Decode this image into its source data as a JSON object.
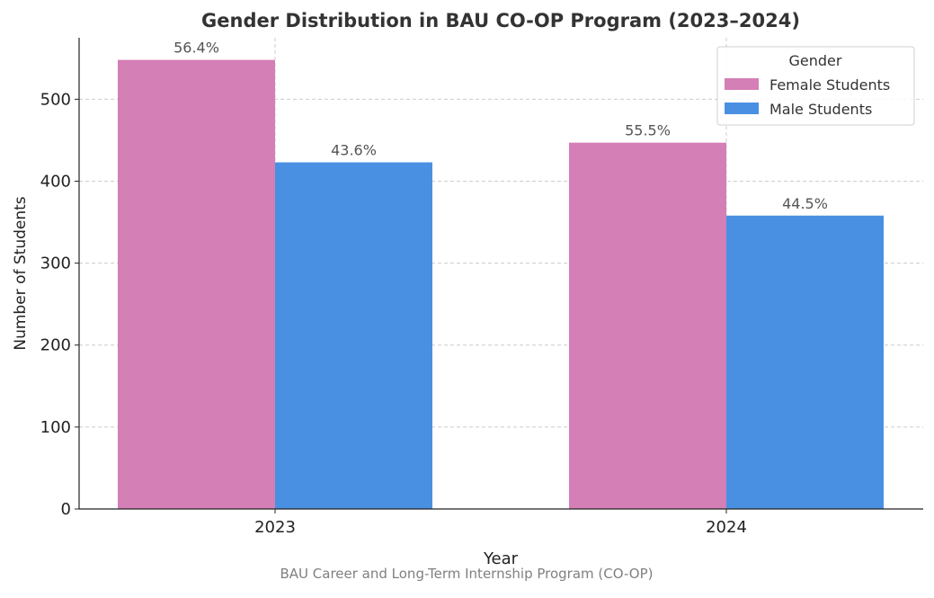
{
  "chart_data": {
    "type": "bar",
    "title": "Gender Distribution in BAU CO-OP Program (2023–2024)",
    "xlabel": "Year",
    "ylabel": "Number of Students",
    "caption": "BAU Career and Long-Term Internship Program (CO-OP)",
    "categories": [
      "2023",
      "2024"
    ],
    "ylim": [
      0,
      575
    ],
    "yticks": [
      0,
      100,
      200,
      300,
      400,
      500
    ],
    "grid": true,
    "legend": {
      "title": "Gender",
      "placement": "top-right"
    },
    "series": [
      {
        "name": "Female Students",
        "color": "#d47fb5",
        "values": [
          548,
          447
        ],
        "labels": [
          "56.4%",
          "55.5%"
        ]
      },
      {
        "name": "Male Students",
        "color": "#4a90e2",
        "values": [
          423,
          358
        ],
        "labels": [
          "43.6%",
          "44.5%"
        ]
      }
    ]
  }
}
